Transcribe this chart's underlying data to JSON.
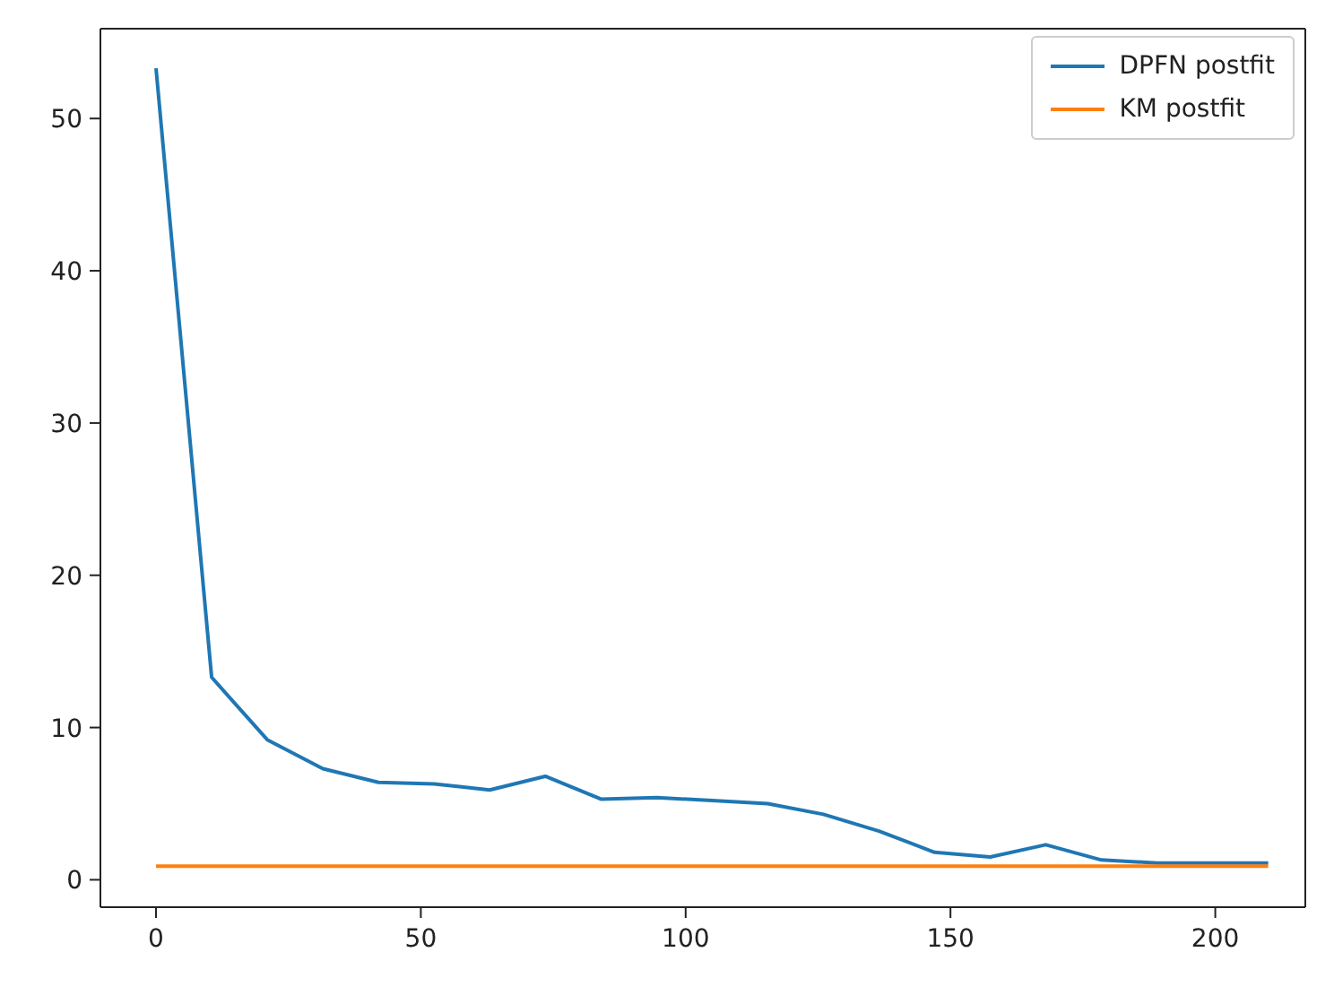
{
  "chart_data": {
    "type": "line",
    "x": [
      0,
      10.5,
      21,
      31.5,
      42,
      52.5,
      63,
      73.5,
      84,
      94.5,
      105,
      115.5,
      126,
      136.5,
      147,
      157.5,
      168,
      178.5,
      189,
      199.5,
      210
    ],
    "series": [
      {
        "name": "DPFN postfit",
        "color": "#1f77b4",
        "values": [
          53.3,
          13.3,
          9.2,
          7.3,
          6.4,
          6.3,
          5.9,
          6.8,
          5.3,
          5.4,
          5.2,
          5.0,
          4.3,
          3.2,
          1.8,
          1.5,
          2.3,
          1.3,
          1.1,
          1.1,
          1.1
        ]
      },
      {
        "name": "KM postfit",
        "color": "#ff7f0e",
        "values": [
          0.9,
          0.9,
          0.9,
          0.9,
          0.9,
          0.9,
          0.9,
          0.9,
          0.9,
          0.9,
          0.9,
          0.9,
          0.9,
          0.9,
          0.9,
          0.9,
          0.9,
          0.9,
          0.9,
          0.9,
          0.9
        ]
      }
    ],
    "xlim": [
      -10.5,
      217
    ],
    "ylim": [
      -1.8,
      55.9
    ],
    "xticks": [
      0,
      50,
      100,
      150,
      200
    ],
    "yticks": [
      0,
      10,
      20,
      30,
      40,
      50
    ],
    "grid": false,
    "legend": "top right"
  }
}
